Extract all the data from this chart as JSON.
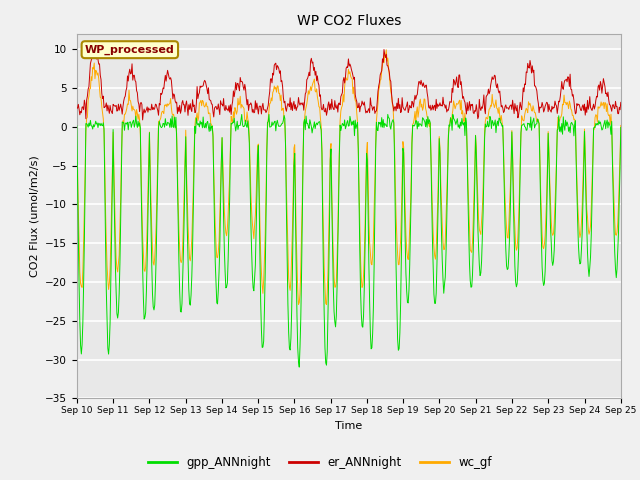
{
  "title": "WP CO2 Fluxes",
  "xlabel": "Time",
  "ylabel": "CO2 Flux (umol/m2/s)",
  "ylim": [
    -35,
    12
  ],
  "yticks": [
    -35,
    -30,
    -25,
    -20,
    -15,
    -10,
    -5,
    0,
    5,
    10
  ],
  "xtick_labels": [
    "Sep 10",
    "Sep 11",
    "Sep 12",
    "Sep 13",
    "Sep 14",
    "Sep 15",
    "Sep 16",
    "Sep 17",
    "Sep 18",
    "Sep 19",
    "Sep 20",
    "Sep 21",
    "Sep 22",
    "Sep 23",
    "Sep 24",
    "Sep 25"
  ],
  "legend_entries": [
    "gpp_ANNnight",
    "er_ANNnight",
    "wc_gf"
  ],
  "legend_colors": [
    "#00dd00",
    "#cc0000",
    "#ffaa00"
  ],
  "line_colors": {
    "gpp": "#00dd00",
    "er": "#cc0000",
    "wc": "#ffaa00"
  },
  "wp_label": "WP_processed",
  "wp_label_color": "#880000",
  "wp_box_facecolor": "#ffffcc",
  "wp_box_edgecolor": "#aa8800",
  "fig_facecolor": "#f0f0f0",
  "ax_facecolor": "#e8e8e8",
  "n_days": 15,
  "points_per_day": 48,
  "gpp_night_min": [
    -29,
    -25,
    -24,
    -23,
    -21,
    -29,
    -31,
    -26,
    -29,
    -23,
    -21,
    -19,
    -21,
    -18,
    -19
  ],
  "er_day_max": [
    8,
    5,
    4.5,
    4,
    4,
    6,
    6,
    6,
    7,
    4,
    4,
    4,
    6,
    4,
    3.5
  ],
  "wc_night_min": [
    -21,
    -19,
    -18,
    -17,
    -14,
    -21,
    -23,
    -21,
    -18,
    -17,
    -16,
    -14,
    -16,
    -14,
    -14
  ],
  "wc_day_max": [
    7.5,
    3,
    3,
    3,
    3,
    5,
    5.5,
    7,
    9,
    3,
    3,
    3,
    3,
    3,
    3
  ]
}
